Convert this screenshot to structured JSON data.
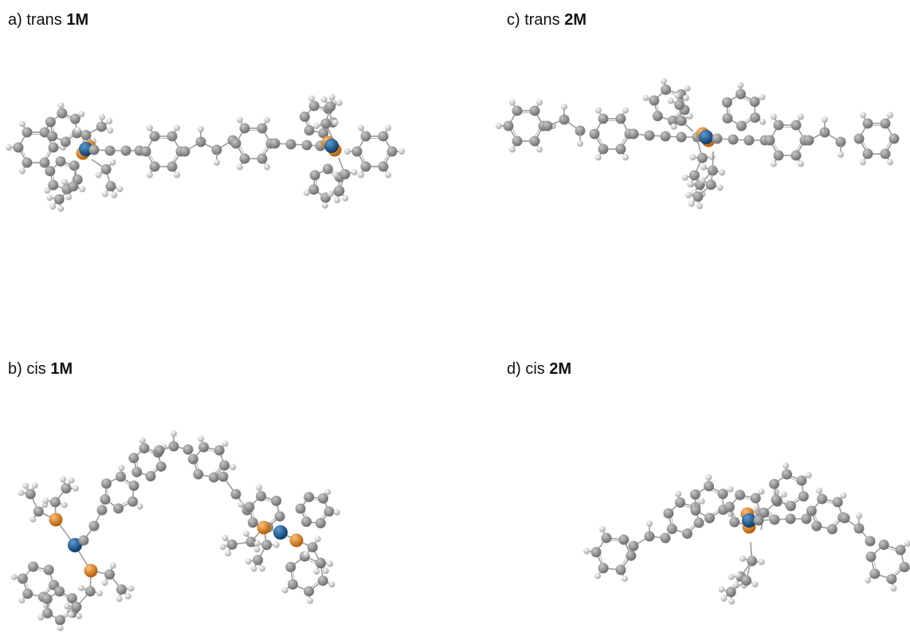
{
  "panels": [
    {
      "id": "a",
      "prefix": "a) trans ",
      "compound": "1M"
    },
    {
      "id": "b",
      "prefix": "b) cis ",
      "compound": "1M"
    },
    {
      "id": "c",
      "prefix": "c) trans ",
      "compound": "2M"
    },
    {
      "id": "d",
      "prefix": "d) cis ",
      "compound": "2M"
    }
  ],
  "atom_colors": {
    "carbon": "#6e6e6e",
    "hydrogen": "#d9d9d9",
    "phosphorus": "#ee8a1e",
    "metal": "#1f5d99"
  }
}
